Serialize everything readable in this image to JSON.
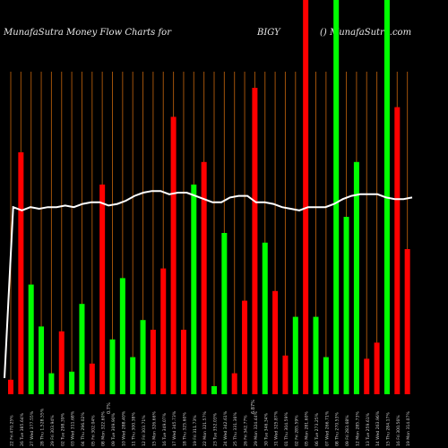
{
  "header": {
    "title": "MunafaSutra  Money Flow  Charts for",
    "symbol": "BIGY",
    "site": "() MunafaSutra.com"
  },
  "colors": {
    "background": "#000000",
    "up": "#00ff00",
    "down": "#ff0000",
    "grid": "#a0520a",
    "line": "#ffffff",
    "label": "#cccccc"
  },
  "chart_data": {
    "type": "bar",
    "grid": "vertical",
    "ylim": [
      0,
      100
    ],
    "bars": [
      {
        "label": "22 Fri 470.25%",
        "value": 4.5,
        "dir": "down"
      },
      {
        "label": "26 Tue 385.64%",
        "value": 75,
        "dir": "down"
      },
      {
        "label": "27 Wed 377.55%",
        "value": 34,
        "dir": "up"
      },
      {
        "label": "28 Thu 1,528.55%",
        "value": 21,
        "dir": "up"
      },
      {
        "label": "29 Fri 303.94%",
        "value": 6.5,
        "dir": "up"
      },
      {
        "label": "02 Tue 298.39%",
        "value": 19.5,
        "dir": "down"
      },
      {
        "label": "03 Wed 311.68%",
        "value": 7,
        "dir": "up"
      },
      {
        "label": "04 Thu 296.02%",
        "value": 28,
        "dir": "up"
      },
      {
        "label": "05 Fri 302.04%",
        "value": 9.5,
        "dir": "down"
      },
      {
        "label": "08 Mon 322.60%",
        "value": 65,
        "dir": "down"
      },
      {
        "label": "09 Tue 309.90%",
        "value": 17,
        "dir": "up"
      },
      {
        "label": "10 Wed 288.40%",
        "value": 36,
        "dir": "up"
      },
      {
        "label": "11 Thu 300.38%",
        "value": 11.5,
        "dir": "up"
      },
      {
        "label": "12 Fri 303.71%",
        "value": 23,
        "dir": "up"
      },
      {
        "label": "15 Mon 326.66%",
        "value": 20,
        "dir": "down"
      },
      {
        "label": "16 Tue 349.07%",
        "value": 39,
        "dir": "down"
      },
      {
        "label": "17 Wed 345.73%",
        "value": 86,
        "dir": "down"
      },
      {
        "label": "18 Thu 325.60%",
        "value": 20,
        "dir": "down"
      },
      {
        "label": "19 Fri 311.73%",
        "value": 65,
        "dir": "up"
      },
      {
        "label": "22 Mon 321.57%",
        "value": 72,
        "dir": "down"
      },
      {
        "label": "23 Tue 352.03%",
        "value": 2.5,
        "dir": "up"
      },
      {
        "label": "24 Wed 342.61%",
        "value": 50,
        "dir": "up"
      },
      {
        "label": "25 Thu 331.36%",
        "value": 6.5,
        "dir": "down"
      },
      {
        "label": "26 Fri 342.77%",
        "value": 29,
        "dir": "down"
      },
      {
        "label": "29 Mon 324.44%",
        "value": 95,
        "dir": "down"
      },
      {
        "label": "30 Tue 346.34%",
        "value": 47,
        "dir": "up"
      },
      {
        "label": "31 Wed 325.87%",
        "value": 32,
        "dir": "down"
      },
      {
        "label": "01 Thu 304.59%",
        "value": 12,
        "dir": "down"
      },
      {
        "label": "02 Fri 285.59%",
        "value": 24,
        "dir": "up"
      },
      {
        "label": "05 Mon 281.60%",
        "value": 100,
        "dir": "down"
      },
      {
        "label": "06 Tue 273.25%",
        "value": 24,
        "dir": "up"
      },
      {
        "label": "07 Wed 266.71%",
        "value": 11.5,
        "dir": "up"
      },
      {
        "label": "08 Thu 270.53%",
        "value": 100,
        "dir": "up"
      },
      {
        "label": "09 Fri 283.68%",
        "value": 55,
        "dir": "up"
      },
      {
        "label": "12 Mon 285.73%",
        "value": 72,
        "dir": "up"
      },
      {
        "label": "13 Tue 259.61%",
        "value": 11,
        "dir": "down"
      },
      {
        "label": "14 Wed 263.96%",
        "value": 16,
        "dir": "down"
      },
      {
        "label": "15 Thu 284.17%",
        "value": 100,
        "dir": "up"
      },
      {
        "label": "16 Fri 300.56%",
        "value": 89,
        "dir": "down"
      },
      {
        "label": "19 Mon 314.07%",
        "value": 45,
        "dir": "down"
      }
    ],
    "money_flow_line": [
      5,
      58,
      57,
      58,
      57.5,
      58,
      58,
      58.5,
      58,
      59,
      59.5,
      59.5,
      58.5,
      59,
      60,
      61.5,
      62.5,
      63,
      63,
      62,
      62.5,
      62.5,
      61.5,
      60.5,
      59.5,
      59.5,
      61,
      61.5,
      61.5,
      59.5,
      59.5,
      59,
      58,
      57.5,
      57,
      58,
      58,
      58,
      59,
      60.5,
      61.5,
      62,
      62,
      62,
      61,
      60.5,
      60.5,
      61
    ],
    "annotations": [
      "0.7%",
      "6.87%"
    ]
  }
}
